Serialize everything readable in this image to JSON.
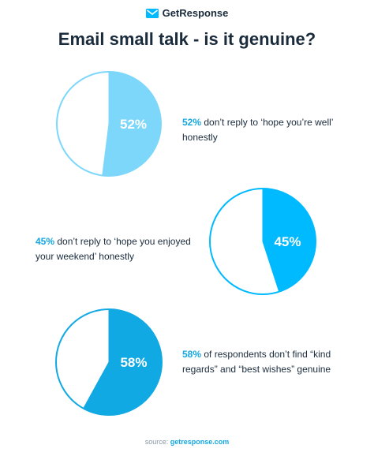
{
  "brand": {
    "name": "GetResponse",
    "accent": "#00baff"
  },
  "title": "Email small talk - is it genuine?",
  "chart_data": [
    {
      "type": "pie",
      "value": 52,
      "center_label": "52%",
      "highlight": "52%",
      "description": " don’t reply to ‘hope you’re well’ honestly",
      "fill_color": "#7dd7fb",
      "stroke_color": "#7dd7fb"
    },
    {
      "type": "pie",
      "value": 45,
      "center_label": "45%",
      "highlight": "45%",
      "description": " don’t reply to ‘hope you enjoyed your weekend’ honestly",
      "fill_color": "#00baff",
      "stroke_color": "#00baff"
    },
    {
      "type": "pie",
      "value": 58,
      "center_label": "58%",
      "highlight": "58%",
      "description": " of respondents don’t find “kind regards” and “best wishes” genuine",
      "fill_color": "#11a9e3",
      "stroke_color": "#11a9e3"
    }
  ],
  "source": {
    "prefix": "source: ",
    "link": "getresponse.com"
  }
}
